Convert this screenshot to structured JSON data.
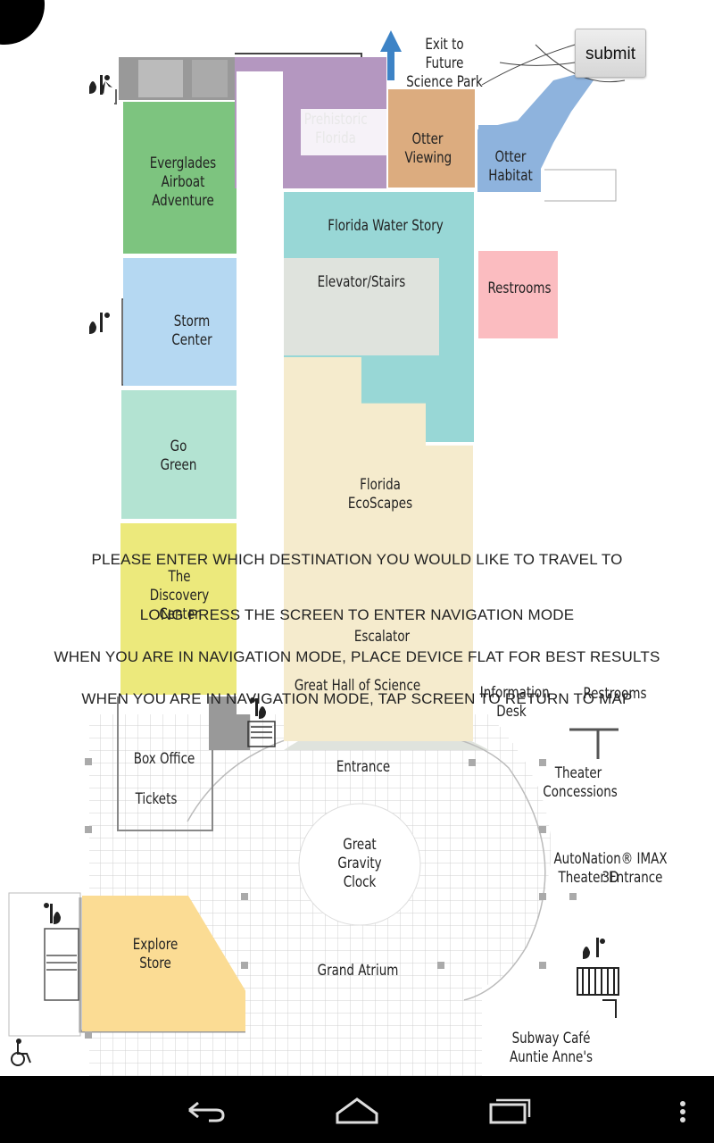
{
  "map": {
    "exit_label": "Exit to Future Science Park",
    "rooms": {
      "everglades": "Everglades Airboat Adventure",
      "storm_center": "Storm Center",
      "go_green": "Go Green",
      "discovery_center": "The Discovery Center",
      "prehistoric_florida": "Prehistoric Florida",
      "otter_viewing": "Otter Viewing",
      "otter_habitat": "Otter Habitat",
      "florida_water_story": "Florida Water Story",
      "elevator_stairs": "Elevator/Stairs",
      "restrooms_upper": "Restrooms",
      "florida_ecoscapes": "Florida EcoScapes",
      "escalator": "Escalator",
      "great_hall": "Great Hall of Science",
      "information_desk": "Information Desk",
      "restrooms_lower": "Restrooms",
      "box_office": "Box Office",
      "tickets": "Tickets",
      "entrance": "Entrance",
      "theater_concessions": "Theater Concessions",
      "great_gravity_clock": "Great Gravity Clock",
      "imax_line1": "AutoNation® IMAX 3D",
      "imax_line2": "Theater Entrance",
      "explore_store": "Explore Store",
      "grand_atrium": "Grand Atrium",
      "subway_cafe": "Subway Café",
      "auntie_annes": "Auntie Anne's"
    },
    "colors": {
      "everglades": "#7dc47f",
      "storm_center": "#b5d8f2",
      "go_green": "#b3e3d2",
      "discovery_center": "#ece97c",
      "prehistoric_florida": "#b497c0",
      "otter_viewing": "#dcac7f",
      "otter_habitat": "#8eb3dd",
      "florida_water_story": "#98d7d6",
      "elevator_stairs": "#dfe3dd",
      "restrooms": "#fbbcc0",
      "florida_ecoscapes": "#f5ebcd",
      "explore_store": "#fbdc94"
    }
  },
  "overlay": {
    "line1": "PLEASE ENTER WHICH DESTINATION YOU WOULD LIKE TO TRAVEL TO",
    "line2": "LONG PRESS THE SCREEN TO ENTER NAVIGATION MODE",
    "line3": "WHEN YOU ARE IN NAVIGATION MODE, PLACE DEVICE FLAT FOR BEST RESULTS",
    "line4": "WHEN YOU ARE IN NAVIGATION MODE, TAP SCREEN TO RETURN TO MAP"
  },
  "submit_label": "submit",
  "icons": {
    "fire_exit": "fire-exit-icon",
    "accessibility": "wheelchair-icon",
    "exit_arrow": "up-arrow-icon",
    "back": "back-icon",
    "home": "home-icon",
    "recents": "recents-icon",
    "menu": "overflow-menu-icon"
  }
}
